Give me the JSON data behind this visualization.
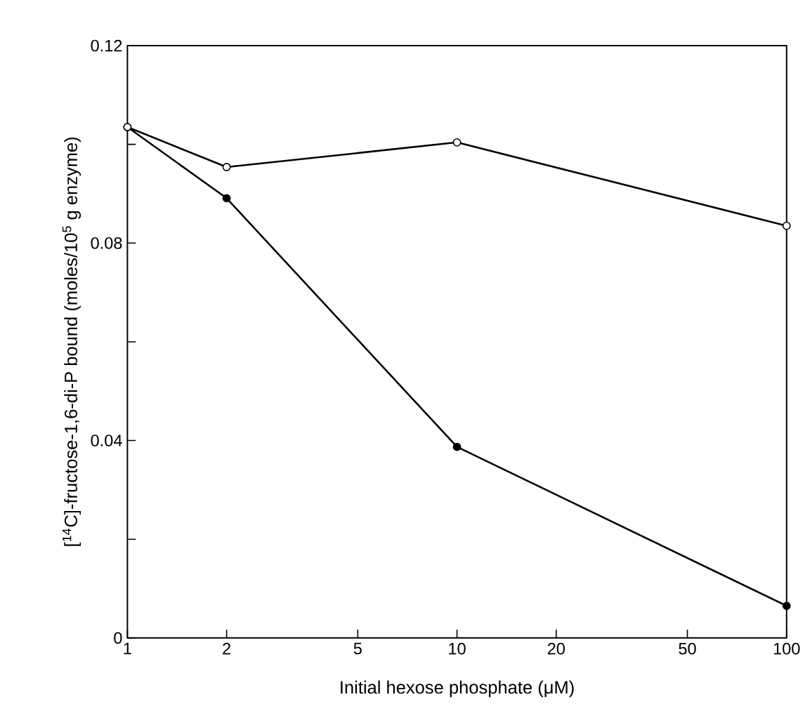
{
  "chart_data": {
    "type": "line",
    "xlabel": "Initial hexose phosphate (μM)",
    "ylabel": "[$^{14}$C]-fructose-1,6-di-P bound (moles/10$^{5}$ g enzyme)",
    "log": "x",
    "x": [
      1,
      2,
      10,
      100
    ],
    "series": [
      {
        "color": "#000000",
        "values": [
          0.1035,
          0.0954,
          0.1004,
          0.0835
        ]
      },
      {
        "color": "#000000",
        "values": [
          0.1035,
          0.0891,
          0.0387,
          0.0065
        ]
      }
    ],
    "xlim": [
      1,
      100
    ],
    "ylim": [
      0,
      0.12
    ],
    "xticks": [
      1,
      2,
      5,
      10,
      20,
      50,
      100
    ],
    "yticks": [
      {
        "value": 0,
        "label": "0"
      },
      {
        "value": 0.02,
        "label": null
      },
      {
        "value": 0.04,
        "label": "0.04"
      },
      {
        "value": 0.06,
        "label": null
      },
      {
        "value": 0.08,
        "label": "0.08"
      },
      {
        "value": 0.1,
        "label": null
      },
      {
        "value": 0.12,
        "label": "0.12"
      }
    ],
    "grid": false,
    "marker": "circle",
    "line_style": "solid"
  }
}
